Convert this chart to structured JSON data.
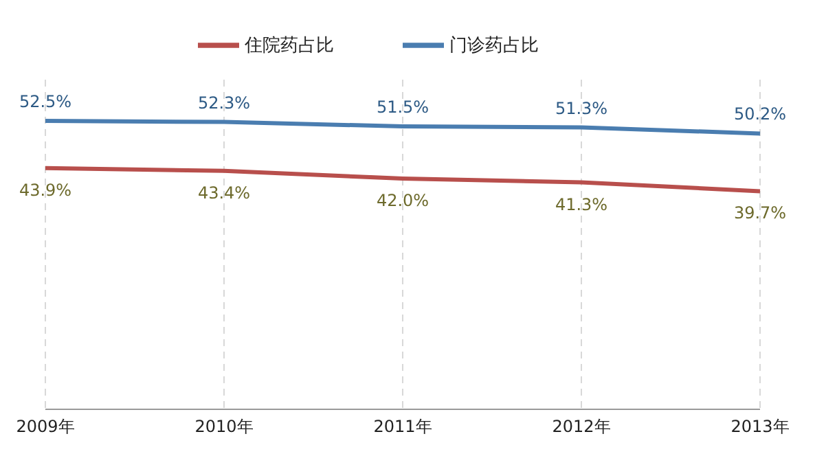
{
  "chart_data": {
    "type": "line",
    "categories": [
      "2009年",
      "2010年",
      "2011年",
      "2012年",
      "2013年"
    ],
    "series": [
      {
        "name": "门诊药占比",
        "color": "#4a7db0",
        "values": [
          52.5,
          52.3,
          51.5,
          51.3,
          50.2
        ],
        "value_labels": [
          "52.5%",
          "52.3%",
          "51.5%",
          "51.3%",
          "50.2%"
        ]
      },
      {
        "name": "住院药占比",
        "color": "#b84f4c",
        "values": [
          43.9,
          43.4,
          42.0,
          41.3,
          39.7
        ],
        "value_labels": [
          "43.9%",
          "43.4%",
          "42.0%",
          "41.3%",
          "39.7%"
        ]
      }
    ],
    "grid": "x",
    "legend": "top",
    "marker": "none",
    "line_style": "solid",
    "tick_labels": "x"
  }
}
